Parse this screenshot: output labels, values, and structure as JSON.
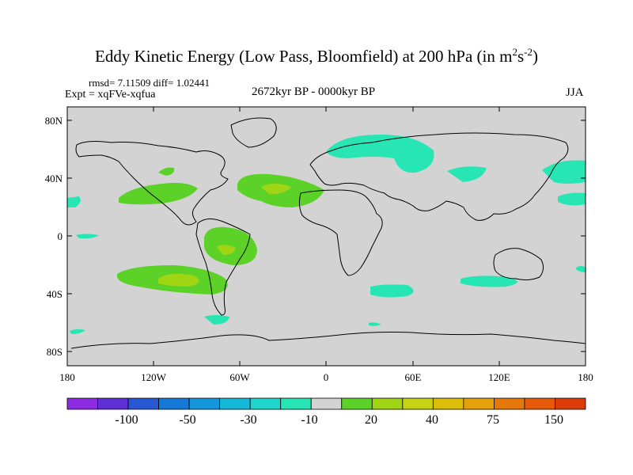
{
  "title": {
    "text": "Eddy Kinetic Energy (Low Pass, Bloomfield) at 200 hPa (in m",
    "exp1": "2",
    "mid": "s",
    "exp2": "-2",
    "close": ")"
  },
  "stats": "rmsd= 7.11509 diff= 1.02441",
  "experiment": "Expt = xqFVe-xqfua",
  "period": "2672kyr BP - 0000kyr BP",
  "season": "JJA",
  "map": {
    "ocean_fill": "#d3d3d3",
    "lat_labels": [
      "80N",
      "40N",
      "0",
      "40S",
      "80S"
    ],
    "lon_labels": [
      "180",
      "120W",
      "60W",
      "0",
      "60E",
      "120E",
      "180"
    ]
  },
  "colorbar": {
    "colors": [
      "#8c2be2",
      "#5e2ed6",
      "#2857d4",
      "#1478d8",
      "#1497dc",
      "#14b8d8",
      "#1ed6cc",
      "#28e6b4",
      "#d3d3d3",
      "#5cd228",
      "#a0d514",
      "#c8d214",
      "#dcbe0a",
      "#e6a00a",
      "#e6780a",
      "#e65a0a",
      "#dc3c0a"
    ],
    "labels": [
      "-100",
      "-50",
      "-30",
      "-10",
      "20",
      "40",
      "75",
      "150"
    ]
  }
}
